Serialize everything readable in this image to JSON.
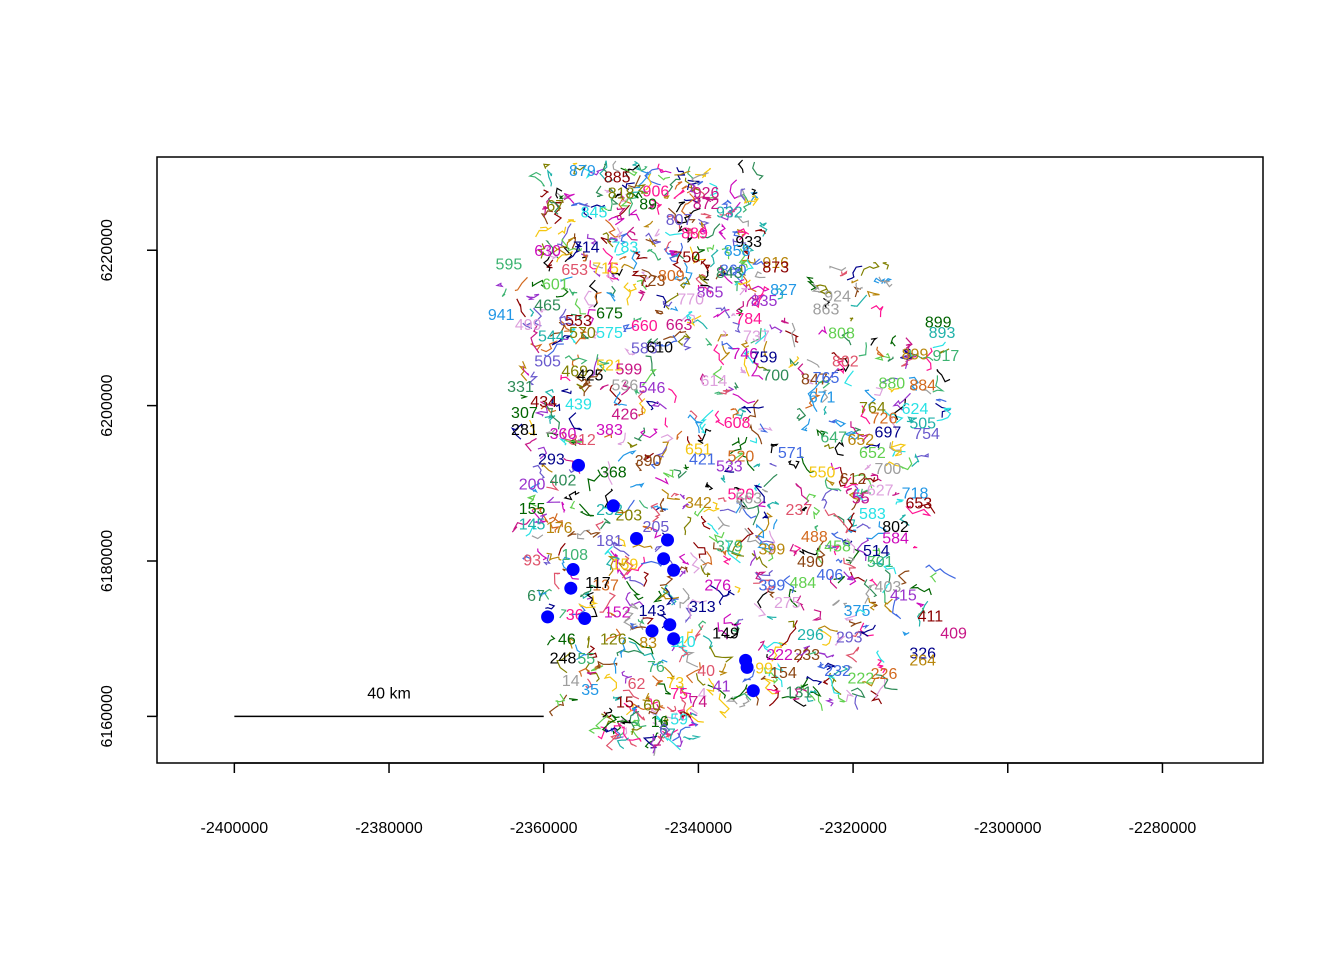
{
  "chart_data": {
    "type": "scatter",
    "title": "",
    "xlabel": "",
    "ylabel": "",
    "xlim": [
      -2410000,
      -2267000
    ],
    "ylim": [
      6154000,
      6232000
    ],
    "x_ticks": [
      -2400000,
      -2380000,
      -2360000,
      -2340000,
      -2320000,
      -2300000,
      -2280000
    ],
    "x_tick_labels": [
      "-2400000",
      "-2380000",
      "-2360000",
      "-2340000",
      "-2320000",
      "-2300000",
      "-2280000"
    ],
    "y_ticks": [
      6160000,
      6180000,
      6200000,
      6220000
    ],
    "y_tick_labels": [
      "6160000",
      "6180000",
      "6200000",
      "6220000"
    ],
    "grid": false,
    "scale_bar": {
      "label": "40 km",
      "x_start": -2400000,
      "x_end": -2360000,
      "y": 6160000
    },
    "point_color": "#0000ff",
    "points": [
      {
        "x": -2355500,
        "y": 6192300
      },
      {
        "x": -2351000,
        "y": 6187100
      },
      {
        "x": -2348000,
        "y": 6182900
      },
      {
        "x": -2344000,
        "y": 6182700
      },
      {
        "x": -2344500,
        "y": 6180300
      },
      {
        "x": -2343200,
        "y": 6178800
      },
      {
        "x": -2356200,
        "y": 6178900
      },
      {
        "x": -2356500,
        "y": 6176500
      },
      {
        "x": -2359500,
        "y": 6172800
      },
      {
        "x": -2354700,
        "y": 6172600
      },
      {
        "x": -2346000,
        "y": 6171000
      },
      {
        "x": -2343700,
        "y": 6171800
      },
      {
        "x": -2343200,
        "y": 6170000
      },
      {
        "x": -2333900,
        "y": 6167200
      },
      {
        "x": -2333700,
        "y": 6166300
      },
      {
        "x": -2332900,
        "y": 6163300
      }
    ],
    "label_palette": [
      "#000000",
      "#df536b",
      "#61d04f",
      "#2297e6",
      "#28e2e5",
      "#cd0bbc",
      "#f5c710",
      "#9e9e9e",
      "#8b0000",
      "#006400",
      "#00008b",
      "#8b4513",
      "#9932cc",
      "#ff1493",
      "#20b2aa",
      "#b8860b",
      "#4169e1",
      "#2e8b57",
      "#c71585",
      "#6a5acd",
      "#3cb371",
      "#d2691e",
      "#dda0dd",
      "#808000"
    ],
    "segment_labels": [
      {
        "text": "879",
        "x": -2355000,
        "y": 6230300
      },
      {
        "text": "885",
        "x": -2350500,
        "y": 6229500
      },
      {
        "text": "906",
        "x": -2345500,
        "y": 6227700
      },
      {
        "text": "926",
        "x": -2339000,
        "y": 6227500
      },
      {
        "text": "67",
        "x": -2358500,
        "y": 6225800
      },
      {
        "text": "845",
        "x": -2353500,
        "y": 6225000
      },
      {
        "text": "89",
        "x": -2346500,
        "y": 6226000
      },
      {
        "text": "932",
        "x": -2336000,
        "y": 6225000
      },
      {
        "text": "807",
        "x": -2342500,
        "y": 6224000
      },
      {
        "text": "933",
        "x": -2333500,
        "y": 6221200
      },
      {
        "text": "630",
        "x": -2359500,
        "y": 6220000
      },
      {
        "text": "714",
        "x": -2354500,
        "y": 6220500
      },
      {
        "text": "916",
        "x": -2330000,
        "y": 6218500
      },
      {
        "text": "595",
        "x": -2364500,
        "y": 6218300
      },
      {
        "text": "653",
        "x": -2356000,
        "y": 6217600
      },
      {
        "text": "715",
        "x": -2352000,
        "y": 6217800
      },
      {
        "text": "723",
        "x": -2346000,
        "y": 6216200
      },
      {
        "text": "860",
        "x": -2335500,
        "y": 6217500
      },
      {
        "text": "809",
        "x": -2343500,
        "y": 6216800
      },
      {
        "text": "601",
        "x": -2358500,
        "y": 6215700
      },
      {
        "text": "924",
        "x": -2322000,
        "y": 6214200
      },
      {
        "text": "865",
        "x": -2338500,
        "y": 6214700
      },
      {
        "text": "465",
        "x": -2359500,
        "y": 6213000
      },
      {
        "text": "499",
        "x": -2362000,
        "y": 6210500
      },
      {
        "text": "941",
        "x": -2365500,
        "y": 6211800
      },
      {
        "text": "553",
        "x": -2355500,
        "y": 6211000
      },
      {
        "text": "784",
        "x": -2333500,
        "y": 6211300
      },
      {
        "text": "663",
        "x": -2342500,
        "y": 6210500
      },
      {
        "text": "570",
        "x": -2355000,
        "y": 6209500
      },
      {
        "text": "575",
        "x": -2351500,
        "y": 6209500
      },
      {
        "text": "899",
        "x": -2309000,
        "y": 6210800
      },
      {
        "text": "893",
        "x": -2308500,
        "y": 6209500
      },
      {
        "text": "583",
        "x": -2347000,
        "y": 6207500
      },
      {
        "text": "610",
        "x": -2345000,
        "y": 6207600
      },
      {
        "text": "746",
        "x": -2334000,
        "y": 6206800
      },
      {
        "text": "759",
        "x": -2331500,
        "y": 6206300
      },
      {
        "text": "899",
        "x": -2312000,
        "y": 6206700
      },
      {
        "text": "917",
        "x": -2308000,
        "y": 6206500
      },
      {
        "text": "802",
        "x": -2321000,
        "y": 6205800
      },
      {
        "text": "521",
        "x": -2351500,
        "y": 6205300
      },
      {
        "text": "847",
        "x": -2325000,
        "y": 6203500
      },
      {
        "text": "765",
        "x": -2323500,
        "y": 6203700
      },
      {
        "text": "884",
        "x": -2311000,
        "y": 6202700
      },
      {
        "text": "880",
        "x": -2315000,
        "y": 6203000
      },
      {
        "text": "536",
        "x": -2349500,
        "y": 6202700
      },
      {
        "text": "546",
        "x": -2346000,
        "y": 6202400
      },
      {
        "text": "331",
        "x": -2363000,
        "y": 6202500
      },
      {
        "text": "614",
        "x": -2338000,
        "y": 6203300
      },
      {
        "text": "671",
        "x": -2324000,
        "y": 6201200
      },
      {
        "text": "434",
        "x": -2360000,
        "y": 6200600
      },
      {
        "text": "608",
        "x": -2335000,
        "y": 6197900
      },
      {
        "text": "426",
        "x": -2349500,
        "y": 6199000
      },
      {
        "text": "764",
        "x": -2317500,
        "y": 6199800
      },
      {
        "text": "624",
        "x": -2312000,
        "y": 6199700
      },
      {
        "text": "307",
        "x": -2362500,
        "y": 6199200
      },
      {
        "text": "505",
        "x": -2311000,
        "y": 6197800
      },
      {
        "text": "754",
        "x": -2310500,
        "y": 6196500
      },
      {
        "text": "281",
        "x": -2362500,
        "y": 6197000
      },
      {
        "text": "383",
        "x": -2351500,
        "y": 6197000
      },
      {
        "text": "697",
        "x": -2315500,
        "y": 6196700
      },
      {
        "text": "652",
        "x": -2319000,
        "y": 6195700
      },
      {
        "text": "647",
        "x": -2322500,
        "y": 6196000
      },
      {
        "text": "312",
        "x": -2355000,
        "y": 6195700
      },
      {
        "text": "651",
        "x": -2340000,
        "y": 6194500
      },
      {
        "text": "390",
        "x": -2346500,
        "y": 6193000
      },
      {
        "text": "421",
        "x": -2339500,
        "y": 6193200
      },
      {
        "text": "520",
        "x": -2334500,
        "y": 6193600
      },
      {
        "text": "652",
        "x": -2317500,
        "y": 6194000
      },
      {
        "text": "700",
        "x": -2315500,
        "y": 6192000
      },
      {
        "text": "200",
        "x": -2361500,
        "y": 6190000
      },
      {
        "text": "402",
        "x": -2357500,
        "y": 6190500
      },
      {
        "text": "627",
        "x": -2316500,
        "y": 6189200
      },
      {
        "text": "718",
        "x": -2312000,
        "y": 6188800
      },
      {
        "text": "653",
        "x": -2311500,
        "y": 6187500
      },
      {
        "text": "520",
        "x": -2334500,
        "y": 6188700
      },
      {
        "text": "55",
        "x": -2319000,
        "y": 6188200
      },
      {
        "text": "203",
        "x": -2349000,
        "y": 6186000
      },
      {
        "text": "583",
        "x": -2317500,
        "y": 6186200
      },
      {
        "text": "155",
        "x": -2361500,
        "y": 6186800
      },
      {
        "text": "145",
        "x": -2361500,
        "y": 6184800
      },
      {
        "text": "205",
        "x": -2345500,
        "y": 6184500
      },
      {
        "text": "802",
        "x": -2314500,
        "y": 6184500
      },
      {
        "text": "584",
        "x": -2314500,
        "y": 6183000
      },
      {
        "text": "514",
        "x": -2317000,
        "y": 6181400
      },
      {
        "text": "399",
        "x": -2330500,
        "y": 6181600
      },
      {
        "text": "501",
        "x": -2316500,
        "y": 6180000
      },
      {
        "text": "93",
        "x": -2361500,
        "y": 6180200
      },
      {
        "text": "159",
        "x": -2349500,
        "y": 6179700
      },
      {
        "text": "490",
        "x": -2325500,
        "y": 6180000
      },
      {
        "text": "406",
        "x": -2323000,
        "y": 6178300
      },
      {
        "text": "137",
        "x": -2352000,
        "y": 6177000
      },
      {
        "text": "484",
        "x": -2326500,
        "y": 6177300
      },
      {
        "text": "403",
        "x": -2315500,
        "y": 6176800
      },
      {
        "text": "415",
        "x": -2313500,
        "y": 6175700
      },
      {
        "text": "67",
        "x": -2361000,
        "y": 6175600
      },
      {
        "text": "275",
        "x": -2328500,
        "y": 6174700
      },
      {
        "text": "375",
        "x": -2319500,
        "y": 6173700
      },
      {
        "text": "411",
        "x": -2310000,
        "y": 6173000
      },
      {
        "text": "36",
        "x": -2356000,
        "y": 6173200
      },
      {
        "text": "409",
        "x": -2307000,
        "y": 6170800
      },
      {
        "text": "126",
        "x": -2351000,
        "y": 6170000
      },
      {
        "text": "110",
        "x": -2342000,
        "y": 6169700
      },
      {
        "text": "46",
        "x": -2357000,
        "y": 6170000
      },
      {
        "text": "296",
        "x": -2325500,
        "y": 6170600
      },
      {
        "text": "293",
        "x": -2320500,
        "y": 6170300
      },
      {
        "text": "248",
        "x": -2357500,
        "y": 6167600
      },
      {
        "text": "222",
        "x": -2329500,
        "y": 6168000
      },
      {
        "text": "326",
        "x": -2311000,
        "y": 6168200
      },
      {
        "text": "264",
        "x": -2311000,
        "y": 6167300
      },
      {
        "text": "76",
        "x": -2345500,
        "y": 6166500
      },
      {
        "text": "40",
        "x": -2339000,
        "y": 6166000
      },
      {
        "text": "99",
        "x": -2331500,
        "y": 6166300
      },
      {
        "text": "154",
        "x": -2329000,
        "y": 6165700
      },
      {
        "text": "232",
        "x": -2322000,
        "y": 6166000
      },
      {
        "text": "226",
        "x": -2316000,
        "y": 6165600
      },
      {
        "text": "222",
        "x": -2319000,
        "y": 6165000
      },
      {
        "text": "14",
        "x": -2356500,
        "y": 6164700
      },
      {
        "text": "41",
        "x": -2337000,
        "y": 6164000
      },
      {
        "text": "131",
        "x": -2327000,
        "y": 6163200
      },
      {
        "text": "4",
        "x": -2339500,
        "y": 6163000
      },
      {
        "text": "35",
        "x": -2354000,
        "y": 6163500
      },
      {
        "text": "15",
        "x": -2349500,
        "y": 6161900
      },
      {
        "text": "75",
        "x": -2342500,
        "y": 6163000
      },
      {
        "text": "74",
        "x": -2340000,
        "y": 6162000
      },
      {
        "text": "60",
        "x": -2346000,
        "y": 6161500
      },
      {
        "text": "59",
        "x": -2342500,
        "y": 6159700
      },
      {
        "text": "16",
        "x": -2345000,
        "y": 6159400
      },
      {
        "text": "7",
        "x": -2343500,
        "y": 6157800
      },
      {
        "text": "6",
        "x": -2344500,
        "y": 6158400
      },
      {
        "text": "149",
        "x": -2336500,
        "y": 6170800
      },
      {
        "text": "276",
        "x": -2337500,
        "y": 6177000
      },
      {
        "text": "313",
        "x": -2339500,
        "y": 6174200
      },
      {
        "text": "342",
        "x": -2340000,
        "y": 6187600
      },
      {
        "text": "379",
        "x": -2336000,
        "y": 6182000
      },
      {
        "text": "237",
        "x": -2327000,
        "y": 6186700
      },
      {
        "text": "550",
        "x": -2324000,
        "y": 6191500
      },
      {
        "text": "612",
        "x": -2320000,
        "y": 6190700
      },
      {
        "text": "571",
        "x": -2328000,
        "y": 6194000
      },
      {
        "text": "726",
        "x": -2316000,
        "y": 6198500
      },
      {
        "text": "808",
        "x": -2321500,
        "y": 6209400
      },
      {
        "text": "863",
        "x": -2323500,
        "y": 6212500
      },
      {
        "text": "835",
        "x": -2331500,
        "y": 6213600
      },
      {
        "text": "843",
        "x": -2336000,
        "y": 6217200
      },
      {
        "text": "770",
        "x": -2341000,
        "y": 6213800
      },
      {
        "text": "858",
        "x": -2335000,
        "y": 6220000
      },
      {
        "text": "750",
        "x": -2341500,
        "y": 6219200
      },
      {
        "text": "660",
        "x": -2347000,
        "y": 6210400
      },
      {
        "text": "599",
        "x": -2349000,
        "y": 6204800
      },
      {
        "text": "469",
        "x": -2356000,
        "y": 6204500
      },
      {
        "text": "439",
        "x": -2355500,
        "y": 6200300
      },
      {
        "text": "368",
        "x": -2351000,
        "y": 6191500
      },
      {
        "text": "232",
        "x": -2351500,
        "y": 6186700
      },
      {
        "text": "181",
        "x": -2351500,
        "y": 6182700
      },
      {
        "text": "117",
        "x": -2353000,
        "y": 6177300
      },
      {
        "text": "152",
        "x": -2350500,
        "y": 6173500
      },
      {
        "text": "143",
        "x": -2346000,
        "y": 6173700
      },
      {
        "text": "83",
        "x": -2346500,
        "y": 6169600
      },
      {
        "text": "55",
        "x": -2354500,
        "y": 6167500
      },
      {
        "text": "62",
        "x": -2348000,
        "y": 6164300
      },
      {
        "text": "73",
        "x": -2343000,
        "y": 6164400
      },
      {
        "text": "233",
        "x": -2326000,
        "y": 6168000
      },
      {
        "text": "399",
        "x": -2330500,
        "y": 6177000
      },
      {
        "text": "488",
        "x": -2325000,
        "y": 6183200
      },
      {
        "text": "458",
        "x": -2322000,
        "y": 6182000
      },
      {
        "text": "563",
        "x": -2333500,
        "y": 6188200
      },
      {
        "text": "533",
        "x": -2336000,
        "y": 6192300
      },
      {
        "text": "700",
        "x": -2330000,
        "y": 6204000
      },
      {
        "text": "737",
        "x": -2332500,
        "y": 6209000
      },
      {
        "text": "827",
        "x": -2329000,
        "y": 6215000
      },
      {
        "text": "873",
        "x": -2330000,
        "y": 6217900
      },
      {
        "text": "889",
        "x": -2340500,
        "y": 6222300
      },
      {
        "text": "872",
        "x": -2339000,
        "y": 6226100
      },
      {
        "text": "818",
        "x": -2350000,
        "y": 6227400
      },
      {
        "text": "783",
        "x": -2349500,
        "y": 6220500
      },
      {
        "text": "675",
        "x": -2351500,
        "y": 6212000
      },
      {
        "text": "544",
        "x": -2359000,
        "y": 6209000
      },
      {
        "text": "505",
        "x": -2359500,
        "y": 6205800
      },
      {
        "text": "425",
        "x": -2354000,
        "y": 6204000
      },
      {
        "text": "360",
        "x": -2357500,
        "y": 6196500
      },
      {
        "text": "293",
        "x": -2359000,
        "y": 6193200
      },
      {
        "text": "176",
        "x": -2358000,
        "y": 6184400
      },
      {
        "text": "108",
        "x": -2356000,
        "y": 6180900
      }
    ]
  }
}
